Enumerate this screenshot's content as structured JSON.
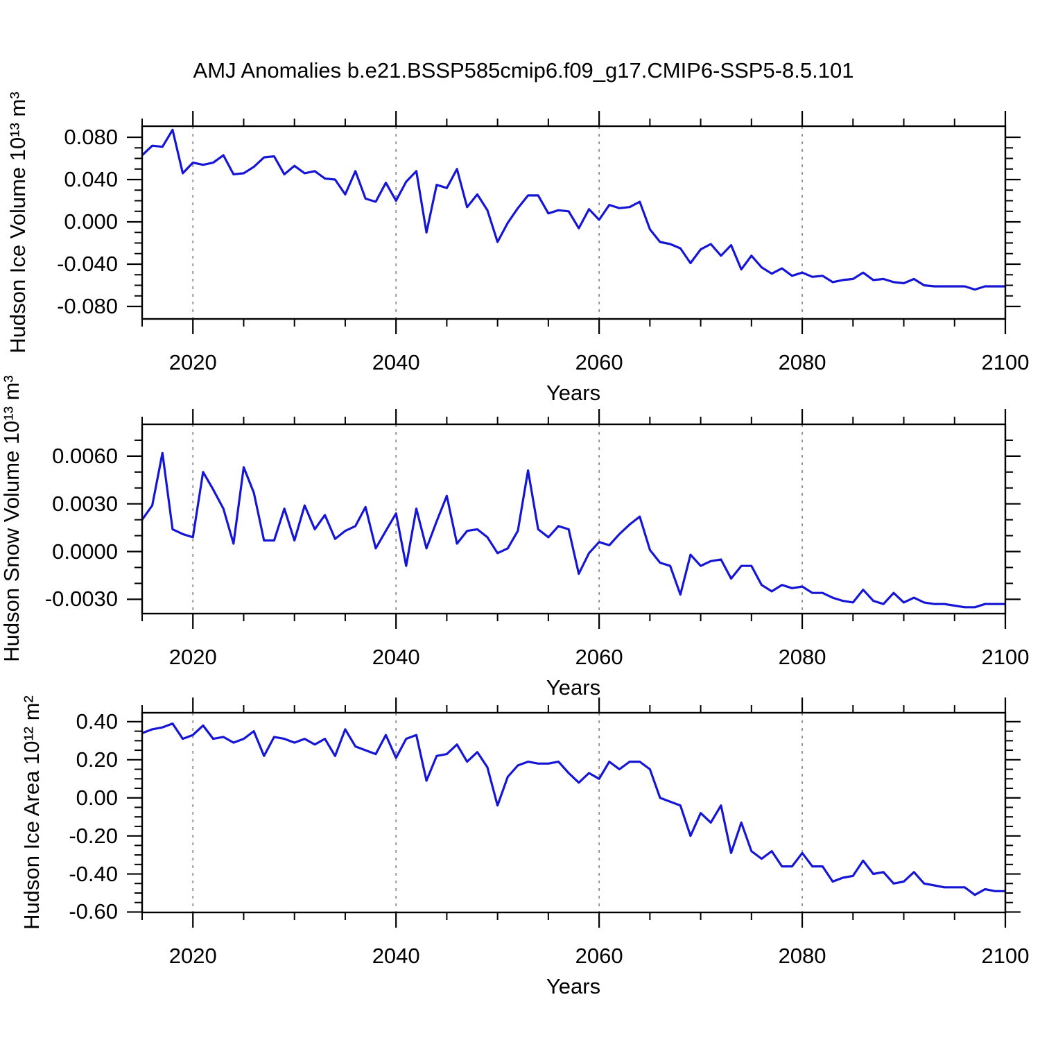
{
  "title": "AMJ Anomalies b.e21.BSSP585cmip6.f09_g17.CMIP6-SSP5-8.5.101",
  "colors": {
    "line": "#1515d6",
    "grid": "#7a7a7a",
    "frame": "#000000"
  },
  "x_axis": {
    "label": "Years",
    "xlim": [
      2015,
      2100
    ],
    "ticks": [
      {
        "value": 2020,
        "label": "2020"
      },
      {
        "value": 2040,
        "label": "2040"
      },
      {
        "value": 2060,
        "label": "2060"
      },
      {
        "value": 2080,
        "label": "2080"
      },
      {
        "value": 2100,
        "label": "2100"
      }
    ],
    "minor_step": 5,
    "gridlines": [
      2020,
      2040,
      2060,
      2080
    ]
  },
  "chart_data": [
    {
      "type": "line",
      "ylabel": "Hudson Ice Volume 10¹³ m³",
      "xlabel": "Years",
      "legend": null,
      "grid": "vertical-dashed",
      "x_start": 2015,
      "x_end": 2100,
      "x_step": 1,
      "ylim": [
        -0.0918,
        0.0905
      ],
      "y_minor_step": 0.01,
      "yticks": [
        {
          "value": 0.08,
          "label": "0.080"
        },
        {
          "value": 0.04,
          "label": "0.040"
        },
        {
          "value": 0.0,
          "label": "0.000"
        },
        {
          "value": -0.04,
          "label": "-0.040"
        },
        {
          "value": -0.08,
          "label": "-0.080"
        }
      ],
      "values": [
        0.063,
        0.072,
        0.071,
        0.087,
        0.046,
        0.056,
        0.054,
        0.056,
        0.063,
        0.045,
        0.046,
        0.052,
        0.061,
        0.062,
        0.045,
        0.053,
        0.046,
        0.048,
        0.041,
        0.04,
        0.026,
        0.048,
        0.022,
        0.019,
        0.037,
        0.02,
        0.038,
        0.048,
        -0.01,
        0.035,
        0.032,
        0.05,
        0.014,
        0.026,
        0.011,
        -0.019,
        -0.001,
        0.013,
        0.025,
        0.025,
        0.008,
        0.011,
        0.01,
        -0.006,
        0.012,
        0.002,
        0.016,
        0.013,
        0.014,
        0.019,
        -0.007,
        -0.019,
        -0.021,
        -0.025,
        -0.039,
        -0.026,
        -0.021,
        -0.032,
        -0.022,
        -0.045,
        -0.032,
        -0.043,
        -0.049,
        -0.044,
        -0.051,
        -0.048,
        -0.052,
        -0.051,
        -0.057,
        -0.055,
        -0.054,
        -0.048,
        -0.055,
        -0.054,
        -0.057,
        -0.058,
        -0.054,
        -0.06,
        -0.061,
        -0.061,
        -0.061,
        -0.061,
        -0.064,
        -0.061,
        -0.061,
        -0.061
      ]
    },
    {
      "type": "line",
      "ylabel": "Hudson Snow Volume 10¹³ m³",
      "xlabel": "Years",
      "legend": null,
      "grid": "vertical-dashed",
      "x_start": 2015,
      "x_end": 2100,
      "x_step": 1,
      "ylim": [
        -0.0039,
        0.008
      ],
      "y_minor_step": 0.001,
      "yticks": [
        {
          "value": 0.006,
          "label": "0.0060"
        },
        {
          "value": 0.003,
          "label": "0.0030"
        },
        {
          "value": 0.0,
          "label": "0.0000"
        },
        {
          "value": -0.003,
          "label": "-0.0030"
        }
      ],
      "values": [
        0.002,
        0.0029,
        0.0062,
        0.0014,
        0.0011,
        0.0009,
        0.005,
        0.0039,
        0.0027,
        0.0005,
        0.0053,
        0.0037,
        0.0007,
        0.0007,
        0.0027,
        0.0007,
        0.0029,
        0.0014,
        0.0023,
        0.0008,
        0.0013,
        0.0016,
        0.0028,
        0.0002,
        0.0013,
        0.0024,
        -0.0009,
        0.0027,
        0.0002,
        0.0019,
        0.0035,
        0.0005,
        0.0013,
        0.0014,
        0.0009,
        -0.0001,
        0.0002,
        0.0013,
        0.0051,
        0.0014,
        0.0009,
        0.0016,
        0.0014,
        -0.0014,
        -0.0001,
        0.0006,
        0.0004,
        0.0011,
        0.0017,
        0.0022,
        0.0001,
        -0.0007,
        -0.0009,
        -0.0027,
        -0.0002,
        -0.0009,
        -0.0006,
        -0.0005,
        -0.0017,
        -0.0009,
        -0.0009,
        -0.0021,
        -0.0025,
        -0.0021,
        -0.0023,
        -0.0022,
        -0.0026,
        -0.0026,
        -0.0029,
        -0.0031,
        -0.0032,
        -0.0024,
        -0.0031,
        -0.0033,
        -0.0026,
        -0.0032,
        -0.0029,
        -0.0032,
        -0.0033,
        -0.0033,
        -0.0034,
        -0.0035,
        -0.0035,
        -0.0033,
        -0.0033,
        -0.0033
      ]
    },
    {
      "type": "line",
      "ylabel": "Hudson Ice Area 10¹² m²",
      "xlabel": "Years",
      "legend": null,
      "grid": "vertical-dashed",
      "x_start": 2015,
      "x_end": 2100,
      "x_step": 1,
      "ylim": [
        -0.602,
        0.447
      ],
      "y_minor_step": 0.05,
      "yticks": [
        {
          "value": 0.4,
          "label": "0.40"
        },
        {
          "value": 0.2,
          "label": "0.20"
        },
        {
          "value": 0.0,
          "label": "0.00"
        },
        {
          "value": -0.2,
          "label": "-0.20"
        },
        {
          "value": -0.4,
          "label": "-0.40"
        },
        {
          "value": -0.6,
          "label": "-0.60"
        }
      ],
      "values": [
        0.34,
        0.36,
        0.37,
        0.39,
        0.31,
        0.33,
        0.38,
        0.31,
        0.32,
        0.29,
        0.31,
        0.35,
        0.22,
        0.32,
        0.31,
        0.29,
        0.31,
        0.28,
        0.31,
        0.22,
        0.36,
        0.27,
        0.25,
        0.23,
        0.33,
        0.21,
        0.31,
        0.33,
        0.09,
        0.22,
        0.23,
        0.28,
        0.19,
        0.24,
        0.16,
        -0.04,
        0.11,
        0.17,
        0.19,
        0.18,
        0.18,
        0.19,
        0.13,
        0.08,
        0.13,
        0.1,
        0.19,
        0.15,
        0.19,
        0.19,
        0.15,
        0.0,
        -0.02,
        -0.04,
        -0.2,
        -0.08,
        -0.13,
        -0.04,
        -0.29,
        -0.13,
        -0.28,
        -0.32,
        -0.28,
        -0.36,
        -0.36,
        -0.29,
        -0.36,
        -0.36,
        -0.44,
        -0.42,
        -0.41,
        -0.33,
        -0.4,
        -0.39,
        -0.45,
        -0.44,
        -0.39,
        -0.45,
        -0.46,
        -0.47,
        -0.47,
        -0.47,
        -0.51,
        -0.48,
        -0.49,
        -0.49
      ]
    }
  ]
}
